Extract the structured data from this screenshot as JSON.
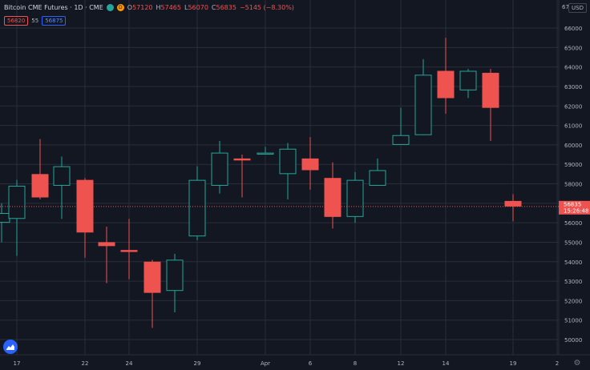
{
  "legend": {
    "title": "Bitcoin CME Futures · 1D · CME",
    "open_key": "O",
    "open": "57120",
    "high_key": "H",
    "high": "57465",
    "low_key": "L",
    "low": "56070",
    "close_key": "C",
    "close": "56835",
    "change": "−5145 (−8.30%)"
  },
  "price_row": {
    "bid": "56820",
    "spread": "55",
    "ask": "56875"
  },
  "currency": "USD",
  "top_right_label": "67",
  "last_price": {
    "value": "56835",
    "countdown": "15:26:48"
  },
  "icons": {
    "logo": "tradingview-logo-icon",
    "settings": "gear-icon"
  },
  "colors": {
    "up": "#26a69a",
    "down": "#ef5350",
    "background": "#131722",
    "grid": "#2a2e39"
  },
  "chart_data": {
    "type": "candlestick",
    "x_tick_labels": [
      "17",
      "22",
      "24",
      "29",
      "Apr",
      "6",
      "8",
      "12",
      "14",
      "19",
      "2"
    ],
    "y_tick_labels": [
      "50000",
      "51000",
      "52000",
      "53000",
      "54000",
      "55000",
      "56000",
      "57000",
      "58000",
      "59000",
      "60000",
      "61000",
      "62000",
      "63000",
      "64000",
      "65000",
      "66000"
    ],
    "ylim": [
      49400,
      66600
    ],
    "grid": true,
    "candles": [
      {
        "o": 56000,
        "h": 57000,
        "l": 55000,
        "c": 56500
      },
      {
        "o": 56200,
        "h": 58200,
        "l": 54300,
        "c": 57900
      },
      {
        "o": 58500,
        "h": 60300,
        "l": 57200,
        "c": 57300
      },
      {
        "o": 57900,
        "h": 59400,
        "l": 56200,
        "c": 58900
      },
      {
        "o": 58200,
        "h": 58300,
        "l": 54200,
        "c": 55500
      },
      {
        "o": 55000,
        "h": 55800,
        "l": 52900,
        "c": 54800
      },
      {
        "o": 54600,
        "h": 56200,
        "l": 53100,
        "c": 54500
      },
      {
        "o": 54000,
        "h": 54100,
        "l": 50600,
        "c": 52400
      },
      {
        "o": 52500,
        "h": 54400,
        "l": 51400,
        "c": 54100
      },
      {
        "o": 55300,
        "h": 58900,
        "l": 55100,
        "c": 58200
      },
      {
        "o": 57900,
        "h": 60200,
        "l": 57500,
        "c": 59600
      },
      {
        "o": 59300,
        "h": 59500,
        "l": 57300,
        "c": 59200
      },
      {
        "o": 59500,
        "h": 59900,
        "l": 59500,
        "c": 59600
      },
      {
        "o": 58500,
        "h": 60100,
        "l": 57200,
        "c": 59800
      },
      {
        "o": 59300,
        "h": 60400,
        "l": 57700,
        "c": 58700
      },
      {
        "o": 58300,
        "h": 59100,
        "l": 55700,
        "c": 56300
      },
      {
        "o": 56300,
        "h": 58600,
        "l": 56000,
        "c": 58200
      },
      {
        "o": 57900,
        "h": 59300,
        "l": 57900,
        "c": 58700
      },
      {
        "o": 60000,
        "h": 61900,
        "l": 60000,
        "c": 60500
      },
      {
        "o": 60500,
        "h": 64400,
        "l": 60500,
        "c": 63600
      },
      {
        "o": 63800,
        "h": 65500,
        "l": 61600,
        "c": 62400
      },
      {
        "o": 62800,
        "h": 63900,
        "l": 62400,
        "c": 63800
      },
      {
        "o": 63700,
        "h": 63900,
        "l": 60200,
        "c": 61900
      },
      {
        "o": 57120,
        "h": 57465,
        "l": 56070,
        "c": 56835
      }
    ]
  }
}
